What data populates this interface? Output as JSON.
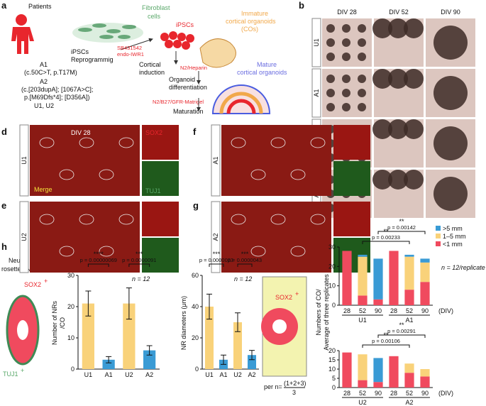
{
  "figure": {
    "a": {
      "label": "a",
      "patients": "Patients",
      "fibroblast": [
        "Fibroblast",
        "cells"
      ],
      "ipscs_reprog": [
        "iPSCs",
        "Reprogrammig"
      ],
      "ipscs": "iPSCs",
      "small_molecules": [
        "SB431542",
        "endo-IWR1"
      ],
      "cortical_induction": [
        "Cortical",
        "induction"
      ],
      "immature": [
        "Immature",
        "cortical organoids",
        "(COs)"
      ],
      "n2_heparin": "N2/Heparin",
      "organoid_diff": [
        "Organoid",
        "differentiation"
      ],
      "mature": [
        "Mature",
        "cortical organoids"
      ],
      "n2_b27": "N2/B27/GFR-Matrigel",
      "maturation": "Maturation",
      "genotypes": [
        "A1",
        "(c.50C>T, p.T17M)",
        "A2",
        "(c.[203dupA]; [1067A>C];",
        "p.[M69Dfs*4]; [D356A])",
        "U1, U2"
      ]
    },
    "b": {
      "label": "b",
      "columns": [
        "DIV 28",
        "DIV 52",
        "DIV 90"
      ],
      "rows": [
        "U1",
        "A1",
        "U2",
        "A2"
      ]
    },
    "d": {
      "label": "d",
      "row": "U1",
      "div": "DIV 28",
      "sox2": "SOX2",
      "tuj1": "TUJ1",
      "merge": "Merge"
    },
    "e": {
      "label": "e",
      "row": "U2"
    },
    "f": {
      "label": "f",
      "row": "A1"
    },
    "g": {
      "label": "g",
      "row": "A2"
    },
    "h": {
      "label": "h",
      "title": [
        "Neural",
        "rosettes(NRs)"
      ],
      "sox2": "SOX2",
      "sox2_sup": "+",
      "tuj1": "TUJ1",
      "tuj1_sup": "+"
    },
    "i": {
      "label": "i",
      "title": [
        "NR",
        "diameters"
      ],
      "sox2": "SOX2",
      "sox2_sup": "+",
      "formula_prefix": "per n=",
      "formula_num": "(1+2+3)",
      "formula_den": "3"
    },
    "c": {
      "label": "c"
    }
  },
  "chart_data": [
    {
      "type": "bar",
      "ylabel": [
        "Number of NRs",
        "/CO"
      ],
      "categories": [
        "U1",
        "A1",
        "U2",
        "A2"
      ],
      "values": [
        21,
        3,
        21,
        6
      ],
      "errors": [
        4,
        1,
        5,
        1.5
      ],
      "colors": [
        "#f9d27a",
        "#3a9bd5",
        "#f9d27a",
        "#3a9bd5"
      ],
      "ylim": [
        0,
        30
      ],
      "yticks": [
        0,
        10,
        20,
        30
      ],
      "annotations": [
        {
          "stars": "****",
          "p": "p = 0.00000069"
        },
        {
          "stars": "***",
          "p": "p = 0.0000091"
        }
      ],
      "n": "n = 12"
    },
    {
      "type": "bar",
      "ylabel": [
        "NR diameters (μm)"
      ],
      "categories": [
        "U1",
        "A1",
        "U2",
        "A2"
      ],
      "values": [
        40,
        6,
        30,
        9
      ],
      "errors": [
        8,
        3,
        6,
        3
      ],
      "colors": [
        "#f9d27a",
        "#3a9bd5",
        "#f9d27a",
        "#3a9bd5"
      ],
      "ylim": [
        0,
        60
      ],
      "yticks": [
        0,
        20,
        40,
        60
      ],
      "annotations": [
        {
          "stars": "***",
          "p": "p = 0.0000023"
        },
        {
          "stars": "***",
          "p": "p = 0.0000043"
        }
      ],
      "n": "n = 12"
    },
    {
      "type": "stacked_bar",
      "ylabel": [
        "Numbers of CO/",
        "Average of three replicates"
      ],
      "categories": [
        "28",
        "52",
        "90",
        "28",
        "52",
        "90"
      ],
      "groups": [
        "U1",
        "A1"
      ],
      "xunit": "(DIV)",
      "series": [
        {
          "name": ">5 mm",
          "color": "#3a9bd5",
          "values": [
            0,
            1,
            21,
            0,
            1,
            2
          ]
        },
        {
          "name": "1–5 mm",
          "color": "#f9d27a",
          "values": [
            0,
            20,
            0,
            0,
            17,
            10
          ]
        },
        {
          "name": "<1 mm",
          "color": "#f04a5e",
          "values": [
            28,
            5,
            3,
            28,
            8,
            12
          ]
        }
      ],
      "ylim": [
        0,
        30
      ],
      "yticks": [
        0,
        10,
        20,
        30
      ],
      "annotations": [
        {
          "stars": "**",
          "p": "p = 0.00142"
        },
        {
          "stars": "**",
          "p": "p = 0.00233"
        }
      ],
      "n": "n = 12/replicate"
    },
    {
      "type": "stacked_bar",
      "categories": [
        "28",
        "52",
        "90",
        "28",
        "52",
        "90"
      ],
      "groups": [
        "U2",
        "A2"
      ],
      "xunit": "(DIV)",
      "series": [
        {
          "color": "#3a9bd5",
          "values": [
            0,
            0,
            13,
            0,
            0,
            0
          ]
        },
        {
          "color": "#f9d27a",
          "values": [
            0,
            14,
            0,
            0,
            5,
            4
          ]
        },
        {
          "color": "#f04a5e",
          "values": [
            19,
            4,
            3,
            17,
            8,
            6
          ]
        }
      ],
      "ylim": [
        0,
        20
      ],
      "yticks": [
        0,
        5,
        10,
        15,
        20
      ],
      "annotations": [
        {
          "stars": "**",
          "p": "p = 0.00291"
        },
        {
          "stars": "**",
          "p": "p = 0.00106"
        }
      ]
    }
  ]
}
